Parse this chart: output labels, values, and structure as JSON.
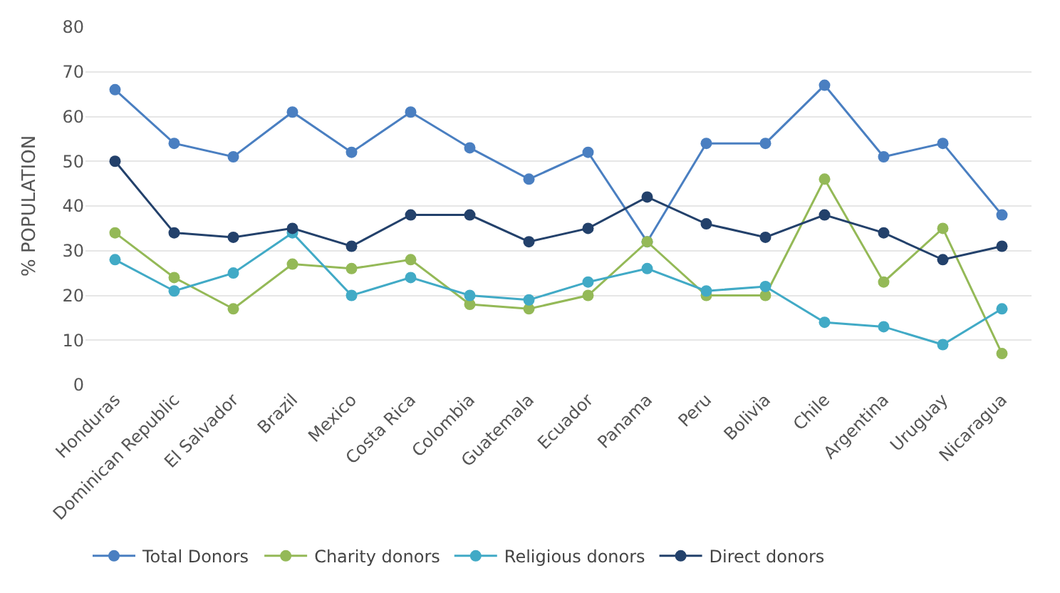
{
  "chart_data": {
    "type": "line",
    "ylabel": "% POPULATION",
    "categories": [
      "Honduras",
      "Dominican Republic",
      "El Salvador",
      "Brazil",
      "Mexico",
      "Costa Rica",
      "Colombia",
      "Guatemala",
      "Ecuador",
      "Panama",
      "Peru",
      "Bolivia",
      "Chile",
      "Argentina",
      "Uruguay",
      "Nicaragua"
    ],
    "series": [
      {
        "name": "Total Donors",
        "color": "#4a7fc1",
        "values": [
          66,
          54,
          51,
          61,
          52,
          61,
          53,
          46,
          52,
          32,
          54,
          54,
          67,
          51,
          54,
          38
        ]
      },
      {
        "name": "Charity donors",
        "color": "#94b957",
        "values": [
          34,
          24,
          17,
          27,
          26,
          28,
          18,
          17,
          20,
          32,
          20,
          20,
          46,
          23,
          35,
          7
        ]
      },
      {
        "name": "Religious donors",
        "color": "#41aac6",
        "values": [
          28,
          21,
          25,
          34,
          20,
          24,
          20,
          19,
          23,
          26,
          21,
          22,
          14,
          13,
          9,
          17
        ]
      },
      {
        "name": "Direct donors",
        "color": "#23416b",
        "values": [
          50,
          34,
          33,
          35,
          31,
          38,
          38,
          32,
          35,
          42,
          36,
          33,
          38,
          34,
          28,
          31
        ]
      }
    ],
    "ylim": [
      0,
      80
    ],
    "yticks": [
      0,
      10,
      20,
      30,
      40,
      50,
      60,
      70,
      80
    ],
    "grid": "y",
    "legend": "bottom",
    "marker": "circle",
    "line_style": "solid"
  }
}
